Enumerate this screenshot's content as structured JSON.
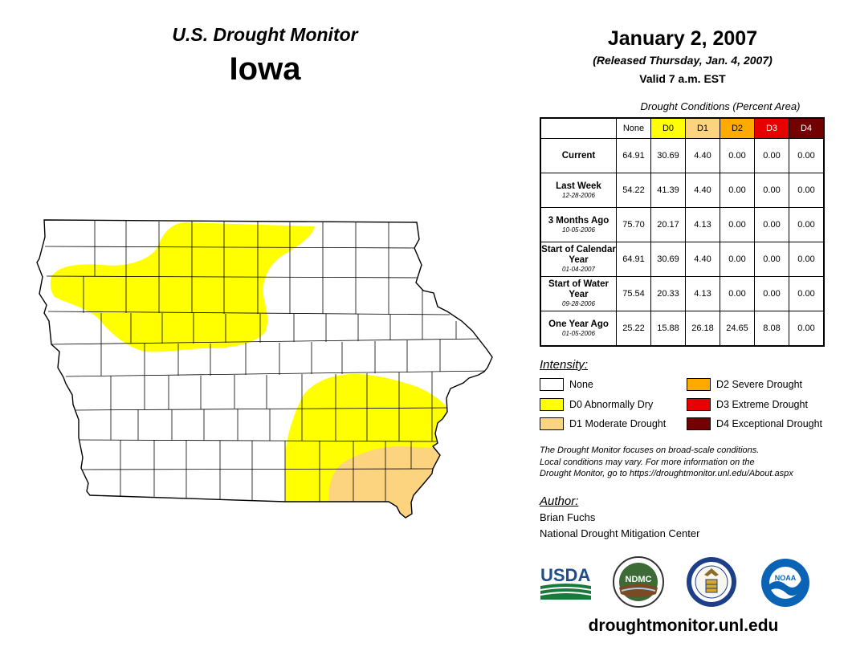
{
  "header": {
    "subtitle": "U.S. Drought Monitor",
    "state": "Iowa",
    "date": "January 2, 2007",
    "released": "(Released Thursday, Jan. 4, 2007)",
    "valid": "Valid 7 a.m. EST"
  },
  "table": {
    "title": "Drought Conditions (Percent Area)",
    "columns": [
      "None",
      "D0",
      "D1",
      "D2",
      "D3",
      "D4"
    ],
    "column_colors": [
      "#ffffff",
      "#ffff00",
      "#fcd37f",
      "#ffaa00",
      "#e60000",
      "#730000"
    ],
    "rows": [
      {
        "label": "Current",
        "date": "",
        "values": [
          "64.91",
          "30.69",
          "4.40",
          "0.00",
          "0.00",
          "0.00"
        ]
      },
      {
        "label": "Last Week",
        "date": "12-28-2006",
        "values": [
          "54.22",
          "41.39",
          "4.40",
          "0.00",
          "0.00",
          "0.00"
        ]
      },
      {
        "label": "3 Months Ago",
        "date": "10-05-2006",
        "values": [
          "75.70",
          "20.17",
          "4.13",
          "0.00",
          "0.00",
          "0.00"
        ]
      },
      {
        "label": "Start of Calendar Year",
        "date": "01-04-2007",
        "values": [
          "64.91",
          "30.69",
          "4.40",
          "0.00",
          "0.00",
          "0.00"
        ]
      },
      {
        "label": "Start of Water Year",
        "date": "09-28-2006",
        "values": [
          "75.54",
          "20.33",
          "4.13",
          "0.00",
          "0.00",
          "0.00"
        ]
      },
      {
        "label": "One Year Ago",
        "date": "01-05-2006",
        "values": [
          "25.22",
          "15.88",
          "26.18",
          "24.65",
          "8.08",
          "0.00"
        ]
      }
    ]
  },
  "legend": {
    "title": "Intensity:",
    "items": [
      {
        "label": "None",
        "color": "#ffffff"
      },
      {
        "label": "D0 Abnormally Dry",
        "color": "#ffff00"
      },
      {
        "label": "D1 Moderate Drought",
        "color": "#fcd37f"
      },
      {
        "label": "D2 Severe Drought",
        "color": "#ffaa00"
      },
      {
        "label": "D3 Extreme Drought",
        "color": "#e60000"
      },
      {
        "label": "D4 Exceptional Drought",
        "color": "#730000"
      }
    ]
  },
  "note": {
    "line1": "The Drought Monitor focuses on broad-scale conditions.",
    "line2": "Local conditions may vary. For more information on the",
    "line3": "Drought Monitor, go to https://droughtmonitor.unl.edu/About.aspx"
  },
  "author": {
    "title": "Author:",
    "name": "Brian Fuchs",
    "org": "National Drought Mitigation Center"
  },
  "logos": {
    "usda": "USDA",
    "ndmc": "NDMC",
    "noaa": "NOAA"
  },
  "url": "droughtmonitor.unl.edu"
}
